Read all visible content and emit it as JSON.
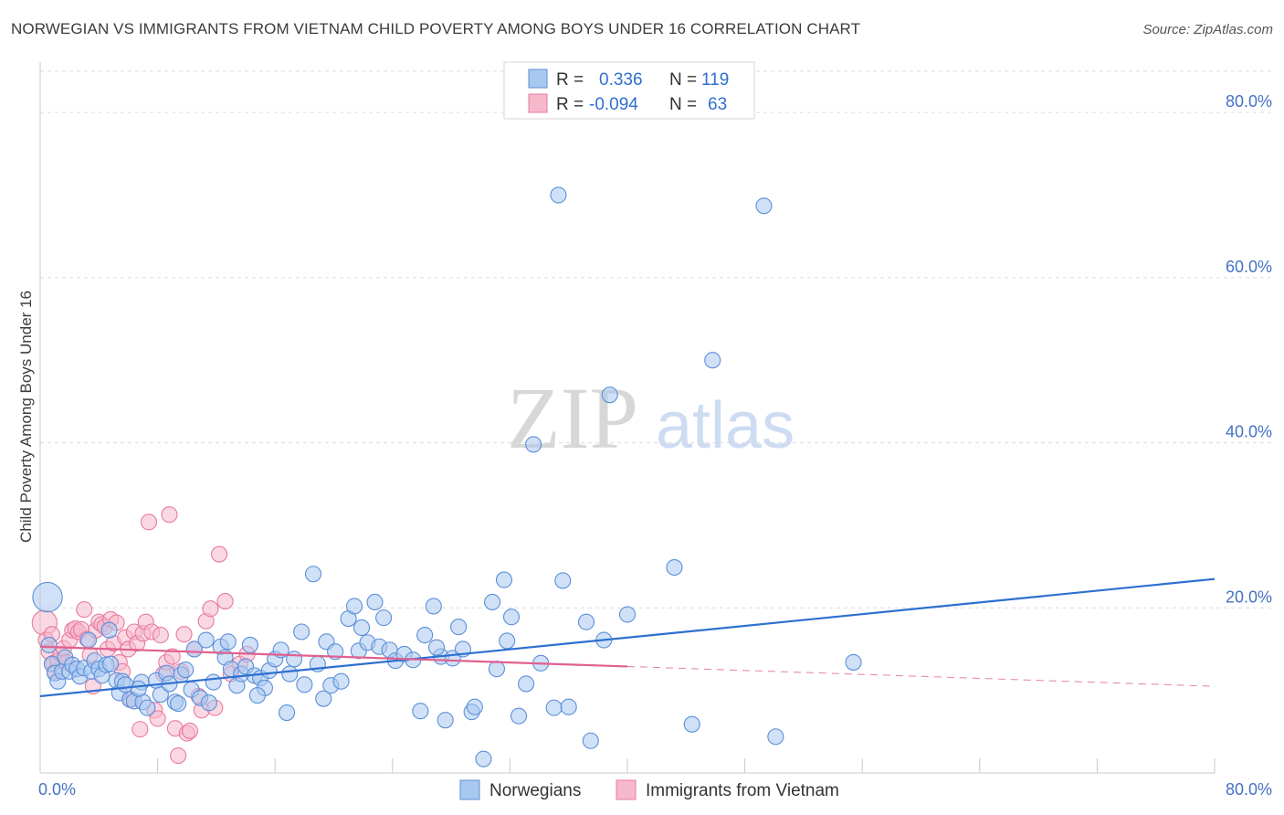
{
  "title": "NORWEGIAN VS IMMIGRANTS FROM VIETNAM CHILD POVERTY AMONG BOYS UNDER 16 CORRELATION CHART",
  "source": "Source: ZipAtlas.com",
  "watermark": {
    "zip": "ZIP",
    "atlas": "atlas"
  },
  "colors": {
    "norwegians_fill": "#a9c8f0",
    "norwegians_stroke": "#5b8fd8",
    "norwegians_line": "#2e6fd0",
    "vietnam_fill": "#f6b8cb",
    "vietnam_stroke": "#e87ba0",
    "vietnam_line": "#e0608f",
    "grid": "#dcdcdc",
    "tick_label": "#4472c4"
  },
  "legend": {
    "rows": [
      {
        "r_label": "R = ",
        "r_value": "0.336",
        "n_label": "N = ",
        "n_value": "119"
      },
      {
        "r_label": "R = ",
        "r_value": "-0.094",
        "n_label": "N = ",
        "n_value": "63"
      }
    ]
  },
  "chart_data": {
    "type": "scatter",
    "title": "NORWEGIAN VS IMMIGRANTS FROM VIETNAM CHILD POVERTY AMONG BOYS UNDER 16 CORRELATION CHART",
    "xlabel": "",
    "ylabel": "Child Poverty Among Boys Under 16",
    "xlim": [
      0,
      80
    ],
    "ylim": [
      0,
      85
    ],
    "x_tick_labels": [
      "0.0%",
      "80.0%"
    ],
    "y_ticks": [
      20,
      40,
      60,
      80
    ],
    "y_tick_labels": [
      "20.0%",
      "40.0%",
      "60.0%",
      "80.0%"
    ],
    "grid": true,
    "legend_position": "top-center",
    "series": [
      {
        "name": "Norwegians",
        "R": 0.336,
        "N": 119,
        "trend": {
          "x0": 0,
          "y0": 9.3,
          "x1": 80,
          "y1": 23.5,
          "dashed_from": null
        },
        "points": [
          [
            0.5,
            21.3,
            1.9
          ],
          [
            0.6,
            15.5,
            1
          ],
          [
            0.8,
            13.2,
            1
          ],
          [
            1.0,
            12.1,
            1
          ],
          [
            1.2,
            11.1,
            1
          ],
          [
            1.5,
            12.3,
            1
          ],
          [
            1.7,
            14.0,
            1
          ],
          [
            2.0,
            12.3,
            1
          ],
          [
            2.2,
            13.1,
            1
          ],
          [
            2.5,
            12.6,
            1
          ],
          [
            2.7,
            11.7,
            1
          ],
          [
            3.0,
            12.7,
            1
          ],
          [
            3.3,
            16.1,
            1
          ],
          [
            3.5,
            12.3,
            1
          ],
          [
            3.7,
            13.6,
            1
          ],
          [
            4.0,
            12.6,
            1
          ],
          [
            4.2,
            11.8,
            1
          ],
          [
            4.5,
            13.1,
            1
          ],
          [
            4.7,
            17.3,
            1
          ],
          [
            5.2,
            11.2,
            1
          ],
          [
            5.4,
            9.7,
            1
          ],
          [
            5.6,
            11.1,
            1
          ],
          [
            5.8,
            10.7,
            1
          ],
          [
            6.1,
            8.9,
            1
          ],
          [
            6.4,
            8.7,
            1
          ],
          [
            6.9,
            11.0,
            1
          ],
          [
            7.0,
            8.6,
            1
          ],
          [
            7.3,
            7.9,
            1
          ],
          [
            7.9,
            11.2,
            1
          ],
          [
            8.2,
            9.5,
            1
          ],
          [
            8.6,
            12.1,
            1
          ],
          [
            8.8,
            10.8,
            1
          ],
          [
            9.2,
            8.6,
            1
          ],
          [
            9.6,
            11.9,
            1
          ],
          [
            9.9,
            12.5,
            1
          ],
          [
            10.3,
            10.1,
            1
          ],
          [
            10.5,
            15.0,
            1
          ],
          [
            10.9,
            9.1,
            1
          ],
          [
            11.3,
            16.1,
            1
          ],
          [
            11.5,
            8.5,
            1
          ],
          [
            11.8,
            11.0,
            1
          ],
          [
            12.3,
            15.3,
            1
          ],
          [
            12.6,
            14.0,
            1
          ],
          [
            12.8,
            15.9,
            1
          ],
          [
            13.0,
            12.6,
            1
          ],
          [
            13.4,
            10.6,
            1
          ],
          [
            13.7,
            12.0,
            1
          ],
          [
            14.0,
            12.9,
            1
          ],
          [
            14.3,
            15.5,
            1
          ],
          [
            14.6,
            11.8,
            1
          ],
          [
            15.0,
            11.5,
            1
          ],
          [
            15.3,
            10.3,
            1
          ],
          [
            15.6,
            12.4,
            1
          ],
          [
            16.0,
            13.8,
            1
          ],
          [
            16.4,
            14.9,
            1
          ],
          [
            16.8,
            7.3,
            1
          ],
          [
            17.0,
            12.0,
            1
          ],
          [
            17.3,
            13.8,
            1
          ],
          [
            17.8,
            17.1,
            1
          ],
          [
            18.0,
            10.7,
            1
          ],
          [
            18.6,
            24.1,
            1
          ],
          [
            18.9,
            13.2,
            1
          ],
          [
            19.3,
            9.0,
            1
          ],
          [
            19.5,
            15.9,
            1
          ],
          [
            19.8,
            10.6,
            1
          ],
          [
            20.1,
            14.7,
            1
          ],
          [
            20.5,
            11.1,
            1
          ],
          [
            21.0,
            18.7,
            1
          ],
          [
            21.4,
            20.2,
            1
          ],
          [
            21.7,
            14.8,
            1
          ],
          [
            22.3,
            15.8,
            1
          ],
          [
            22.8,
            20.7,
            1
          ],
          [
            23.1,
            15.3,
            1
          ],
          [
            23.4,
            18.8,
            1
          ],
          [
            23.8,
            14.9,
            1
          ],
          [
            24.2,
            13.6,
            1
          ],
          [
            24.8,
            14.4,
            1
          ],
          [
            25.4,
            13.7,
            1
          ],
          [
            25.9,
            7.5,
            1
          ],
          [
            26.2,
            16.7,
            1
          ],
          [
            26.8,
            20.2,
            1
          ],
          [
            27.3,
            14.1,
            1
          ],
          [
            27.6,
            6.4,
            1
          ],
          [
            28.1,
            13.9,
            1
          ],
          [
            28.5,
            17.7,
            1
          ],
          [
            28.8,
            15.0,
            1
          ],
          [
            29.4,
            7.4,
            1
          ],
          [
            29.6,
            8.0,
            1
          ],
          [
            30.2,
            1.7,
            1
          ],
          [
            30.8,
            20.7,
            1
          ],
          [
            31.1,
            12.6,
            1
          ],
          [
            31.6,
            23.4,
            1
          ],
          [
            32.1,
            18.9,
            1
          ],
          [
            32.6,
            6.9,
            1
          ],
          [
            33.1,
            10.8,
            1
          ],
          [
            33.6,
            39.8,
            1
          ],
          [
            34.1,
            13.3,
            1
          ],
          [
            35.0,
            7.9,
            1
          ],
          [
            35.3,
            70.0,
            1
          ],
          [
            35.6,
            23.3,
            1
          ],
          [
            36.0,
            8.0,
            1
          ],
          [
            37.2,
            18.3,
            1
          ],
          [
            37.5,
            3.9,
            1
          ],
          [
            38.4,
            16.1,
            1
          ],
          [
            38.8,
            45.8,
            1
          ],
          [
            40.0,
            19.2,
            1
          ],
          [
            43.2,
            24.9,
            1
          ],
          [
            44.4,
            5.9,
            1
          ],
          [
            45.8,
            50.0,
            1
          ],
          [
            49.3,
            68.7,
            1
          ],
          [
            50.1,
            4.4,
            1
          ],
          [
            55.4,
            13.4,
            1
          ],
          [
            4.8,
            13.2,
            1
          ],
          [
            6.7,
            10.2,
            1
          ],
          [
            9.4,
            8.4,
            1
          ],
          [
            14.8,
            9.4,
            1
          ],
          [
            21.9,
            17.6,
            1
          ],
          [
            27.0,
            15.2,
            1
          ],
          [
            31.8,
            16.0,
            1
          ]
        ]
      },
      {
        "name": "Immigrants from Vietnam",
        "R": -0.094,
        "N": 63,
        "trend": {
          "x0": 0,
          "y0": 15.3,
          "x1": 80,
          "y1": 10.5,
          "dashed_from": 40
        },
        "points": [
          [
            0.3,
            18.2,
            1.6
          ],
          [
            0.4,
            16.1,
            1
          ],
          [
            0.6,
            14.7,
            1
          ],
          [
            0.8,
            16.8,
            1
          ],
          [
            0.9,
            13.3,
            1
          ],
          [
            1.0,
            12.3,
            1
          ],
          [
            1.2,
            13.6,
            1
          ],
          [
            1.4,
            14.4,
            1
          ],
          [
            1.6,
            15.1,
            1
          ],
          [
            1.8,
            13.4,
            1
          ],
          [
            2.0,
            16.1,
            1
          ],
          [
            2.2,
            17.3,
            1
          ],
          [
            2.4,
            17.5,
            1
          ],
          [
            2.6,
            17.1,
            1
          ],
          [
            2.8,
            17.4,
            1
          ],
          [
            3.0,
            19.8,
            1
          ],
          [
            3.2,
            16.2,
            1
          ],
          [
            3.4,
            14.3,
            1
          ],
          [
            3.6,
            10.5,
            1
          ],
          [
            3.8,
            17.3,
            1
          ],
          [
            4.0,
            18.3,
            1
          ],
          [
            4.2,
            18.0,
            1
          ],
          [
            4.4,
            17.7,
            1
          ],
          [
            4.6,
            15.0,
            1
          ],
          [
            4.8,
            18.6,
            1
          ],
          [
            5.0,
            15.7,
            1
          ],
          [
            5.2,
            18.2,
            1
          ],
          [
            5.4,
            13.4,
            1
          ],
          [
            5.6,
            12.3,
            1
          ],
          [
            5.8,
            16.4,
            1
          ],
          [
            6.0,
            15.0,
            1
          ],
          [
            6.2,
            8.9,
            1
          ],
          [
            6.4,
            17.1,
            1
          ],
          [
            6.6,
            15.7,
            1
          ],
          [
            6.8,
            5.3,
            1
          ],
          [
            7.0,
            16.9,
            1
          ],
          [
            7.2,
            18.3,
            1
          ],
          [
            7.4,
            30.4,
            1
          ],
          [
            7.6,
            17.1,
            1
          ],
          [
            7.8,
            7.6,
            1
          ],
          [
            8.0,
            6.6,
            1
          ],
          [
            8.2,
            16.7,
            1
          ],
          [
            8.4,
            12.0,
            1
          ],
          [
            8.6,
            13.4,
            1
          ],
          [
            8.8,
            31.3,
            1
          ],
          [
            9.0,
            14.1,
            1
          ],
          [
            9.2,
            5.4,
            1
          ],
          [
            9.4,
            2.1,
            1
          ],
          [
            9.6,
            12.3,
            1
          ],
          [
            9.8,
            16.8,
            1
          ],
          [
            10.0,
            4.8,
            1
          ],
          [
            10.2,
            5.1,
            1
          ],
          [
            10.5,
            15.0,
            1
          ],
          [
            10.8,
            9.3,
            1
          ],
          [
            11.0,
            7.6,
            1
          ],
          [
            11.3,
            18.4,
            1
          ],
          [
            11.6,
            19.9,
            1
          ],
          [
            11.9,
            7.9,
            1
          ],
          [
            12.2,
            26.5,
            1
          ],
          [
            12.6,
            20.8,
            1
          ],
          [
            13.0,
            12.0,
            1
          ],
          [
            13.6,
            13.2,
            1
          ],
          [
            14.1,
            14.4,
            1
          ]
        ]
      }
    ]
  },
  "bottom_legend": [
    {
      "label": "Norwegians"
    },
    {
      "label": "Immigrants from Vietnam"
    }
  ]
}
